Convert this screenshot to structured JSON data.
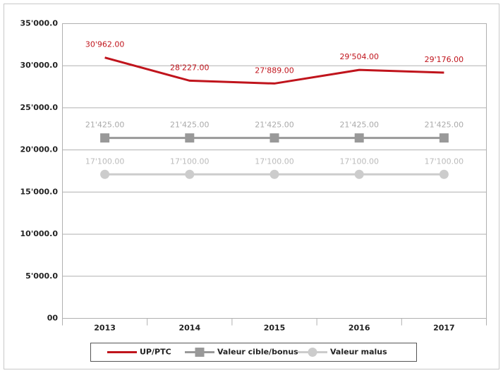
{
  "chart_data": {
    "type": "line",
    "categories": [
      "2013",
      "2014",
      "2015",
      "2016",
      "2017"
    ],
    "series": [
      {
        "name": "UP/PTC",
        "color": "#c0141c",
        "marker": null,
        "values": [
          30962,
          28227,
          27889,
          29504,
          29176
        ],
        "value_labels": [
          "30'962.00",
          "28'227.00",
          "27'889.00",
          "29'504.00",
          "29'176.00"
        ]
      },
      {
        "name": "Valeur cible/bonus",
        "color": "#999999",
        "marker": "square",
        "values": [
          21425,
          21425,
          21425,
          21425,
          21425
        ],
        "value_labels": [
          "21'425.00",
          "21'425.00",
          "21'425.00",
          "21'425.00",
          "21'425.00"
        ]
      },
      {
        "name": "Valeur malus",
        "color": "#cccccc",
        "marker": "circle",
        "values": [
          17100,
          17100,
          17100,
          17100,
          17100
        ],
        "value_labels": [
          "17'100.00",
          "17'100.00",
          "17'100.00",
          "17'100.00",
          "17'100.00"
        ]
      }
    ],
    "ylim": [
      0,
      35000
    ],
    "yticks": [
      {
        "value": 0,
        "label": "00"
      },
      {
        "value": 5000,
        "label": "5'000.0"
      },
      {
        "value": 10000,
        "label": "10'000.0"
      },
      {
        "value": 15000,
        "label": "15'000.0"
      },
      {
        "value": 20000,
        "label": "20'000.0"
      },
      {
        "value": 25000,
        "label": "25'000.0"
      },
      {
        "value": 30000,
        "label": "30'000.0"
      },
      {
        "value": 35000,
        "label": "35'000.0"
      }
    ],
    "grid": true,
    "legend": "bottom"
  }
}
